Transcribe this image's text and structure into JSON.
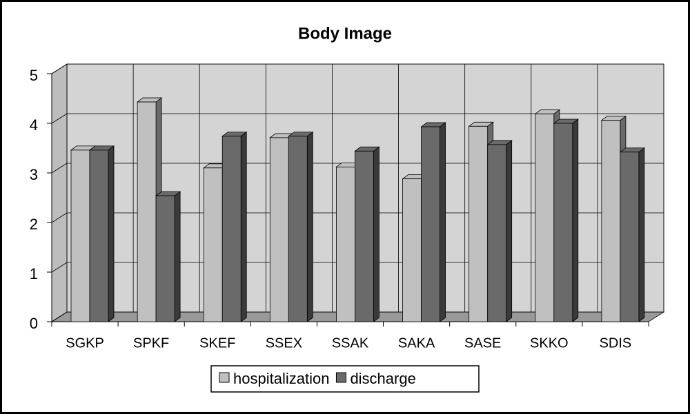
{
  "chart_data": {
    "type": "bar",
    "title": "Body Image",
    "categories": [
      "SGKP",
      "SPKF",
      "SKEF",
      "SSEX",
      "SSAK",
      "SAKA",
      "SASE",
      "SKKO",
      "SDIS"
    ],
    "series": [
      {
        "name": "hospitalization",
        "color": "#c0c0c0",
        "values": [
          3.46,
          4.43,
          3.1,
          3.71,
          3.12,
          2.88,
          3.94,
          4.19,
          4.06
        ]
      },
      {
        "name": "discharge",
        "color": "#6a6a6a",
        "values": [
          3.46,
          2.54,
          3.74,
          3.74,
          3.44,
          3.93,
          3.57,
          4.0,
          3.42
        ]
      }
    ],
    "ylim": [
      0,
      5
    ],
    "yticks": [
      0,
      1,
      2,
      3,
      4,
      5
    ],
    "grid": true,
    "legend": "bottom"
  }
}
